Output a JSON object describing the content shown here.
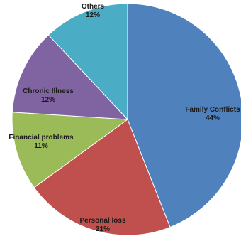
{
  "chart_data": {
    "type": "pie",
    "title": "",
    "slices": [
      {
        "label": "Family Conflicts",
        "value": 44,
        "value_label": "44%",
        "color": "#4F81BD"
      },
      {
        "label": "Personal loss",
        "value": 21,
        "value_label": "21%",
        "color": "#C0504D"
      },
      {
        "label": "Financial problems",
        "value": 11,
        "value_label": "11%",
        "color": "#9BBB59"
      },
      {
        "label": "Chronic Illness",
        "value": 12,
        "value_label": "12%",
        "color": "#8064A2"
      },
      {
        "label": "Others",
        "value": 12,
        "value_label": "12%",
        "color": "#4BACC6"
      }
    ],
    "start_angle_deg": 0,
    "direction": "clockwise",
    "legend": "none",
    "labels_inside": true
  }
}
